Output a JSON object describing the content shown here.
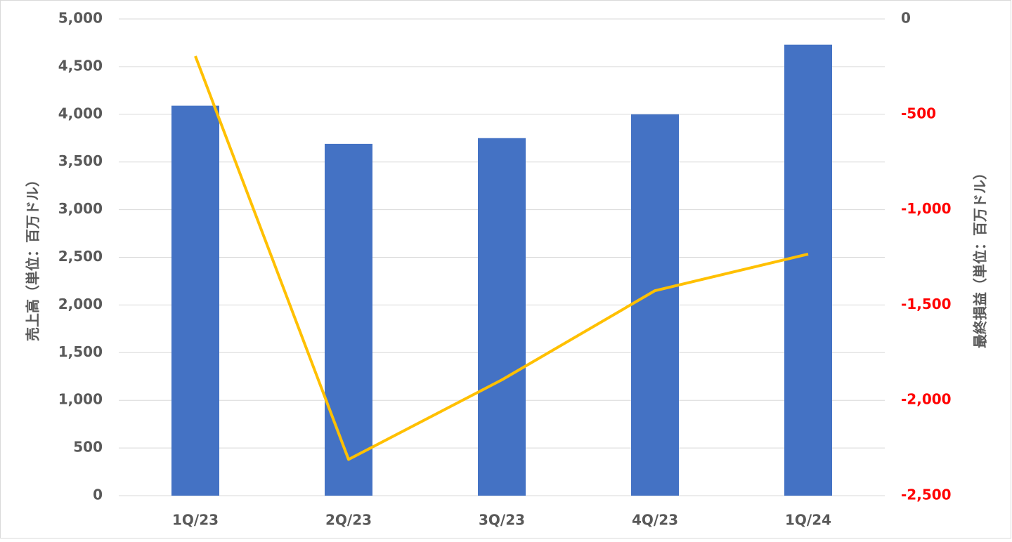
{
  "chart_data": {
    "type": "bar_line",
    "y_label": "売上高（単位：百万ドル）",
    "y2_label": "最終損益（単位：百万ドル）",
    "categories": [
      "1Q/23",
      "2Q/23",
      "3Q/23",
      "4Q/23",
      "1Q/24"
    ],
    "series": [
      {
        "name": "売上高",
        "type": "bar",
        "color": "#4472c4",
        "values": [
          4090,
          3690,
          3750,
          4000,
          4730
        ]
      },
      {
        "name": "最終損益",
        "type": "line",
        "axis": "y2",
        "color": "#ffc000",
        "values": [
          -195,
          -2310,
          -1893,
          -1425,
          -1233
        ]
      }
    ],
    "ylim": [
      0,
      5000
    ],
    "yticks": [
      0,
      500,
      {
        "value": 1000,
        "label": "1,000"
      },
      {
        "value": 1500,
        "label": "1,500"
      },
      {
        "value": 2000,
        "label": "2,000"
      },
      {
        "value": 2500,
        "label": "2,500"
      },
      {
        "value": 3000,
        "label": "3,000"
      },
      {
        "value": 3500,
        "label": "3,500"
      },
      {
        "value": 4000,
        "label": "4,000"
      },
      {
        "value": 4500,
        "label": "4,500"
      },
      {
        "value": 5000,
        "label": "5,000"
      }
    ],
    "y2lim": [
      -2500,
      0
    ],
    "y2ticks": [
      {
        "value": -2500,
        "label": "-2,500"
      },
      {
        "value": -2000,
        "label": "-2,000"
      },
      {
        "value": -1500,
        "label": "-1,500"
      },
      {
        "value": -1000,
        "label": "-1,000"
      },
      -500,
      0
    ],
    "y2_negative_tick_color": "#ff0000",
    "grid": true
  }
}
